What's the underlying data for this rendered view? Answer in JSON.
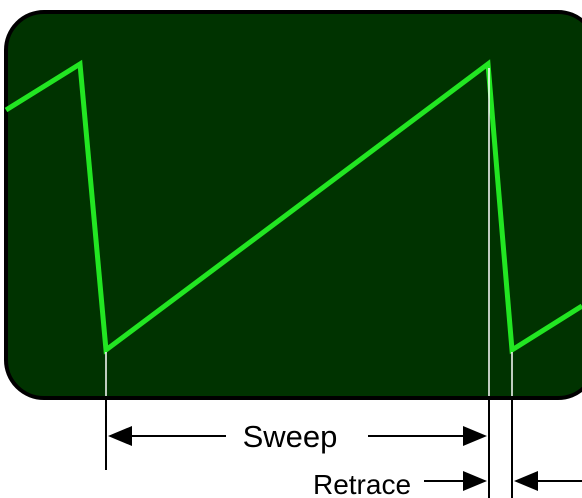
{
  "labels": {
    "sweep": "Sweep",
    "retrace": "Retrace"
  },
  "colors": {
    "screen_background": "#003300",
    "screen_border": "#000000",
    "trace": "#22e622",
    "guide_lines": "#ffffff",
    "dimension_lines": "#000000"
  }
}
